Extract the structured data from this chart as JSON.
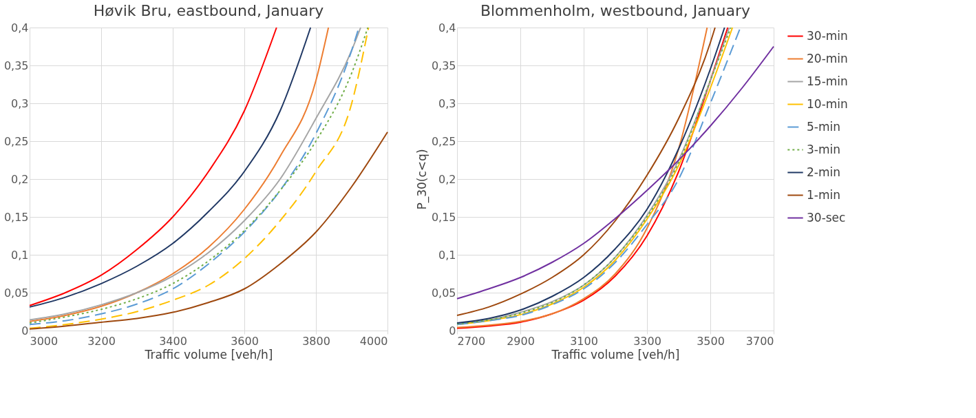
{
  "chart_data": [
    {
      "type": "line",
      "title": "Høvik Bru, eastbound, January",
      "xlabel": "Traffic volume [veh/h]",
      "xlim": [
        3000,
        4000
      ],
      "xticks": [
        3000,
        3200,
        3400,
        3600,
        3800,
        4000
      ],
      "ylim": [
        0,
        0.4
      ],
      "yticks": [
        0,
        {
          "value": 0.05,
          "label": "0,05"
        },
        {
          "value": 0.1,
          "label": "0,1"
        },
        {
          "value": 0.15,
          "label": "0,15"
        },
        {
          "value": 0.2,
          "label": "0,2"
        },
        {
          "value": 0.25,
          "label": "0,25"
        },
        {
          "value": 0.3,
          "label": "0,3"
        },
        {
          "value": 0.35,
          "label": "0,35"
        },
        {
          "value": 0.4,
          "label": "0,4"
        }
      ],
      "grid": true,
      "legend": false,
      "series": [
        {
          "color": "#ff0000",
          "line_style": "solid",
          "x": [
            3000,
            3100,
            3200,
            3300,
            3400,
            3500,
            3600,
            3690
          ],
          "values": [
            0.033,
            0.05,
            0.073,
            0.107,
            0.15,
            0.21,
            0.29,
            0.4
          ]
        },
        {
          "color": "#ed7d31",
          "line_style": "solid",
          "x": [
            3000,
            3100,
            3200,
            3300,
            3400,
            3500,
            3600,
            3700,
            3800,
            3835
          ],
          "values": [
            0.012,
            0.02,
            0.032,
            0.05,
            0.075,
            0.11,
            0.16,
            0.23,
            0.33,
            0.4
          ]
        },
        {
          "color": "#a5a5a5",
          "line_style": "solid",
          "x": [
            3000,
            3100,
            3200,
            3300,
            3400,
            3500,
            3600,
            3700,
            3800,
            3900,
            3925
          ],
          "values": [
            0.014,
            0.022,
            0.034,
            0.05,
            0.072,
            0.103,
            0.145,
            0.2,
            0.28,
            0.37,
            0.4
          ]
        },
        {
          "color": "#ffc000",
          "line_style": "dashed",
          "x": [
            3000,
            3100,
            3200,
            3300,
            3400,
            3500,
            3600,
            3700,
            3800,
            3900,
            3947
          ],
          "values": [
            0.003,
            0.008,
            0.015,
            0.025,
            0.04,
            0.06,
            0.095,
            0.145,
            0.21,
            0.3,
            0.4
          ]
        },
        {
          "color": "#5b9bd5",
          "line_style": "dashed",
          "x": [
            3000,
            3100,
            3200,
            3300,
            3400,
            3500,
            3600,
            3700,
            3800,
            3900,
            3920
          ],
          "values": [
            0.008,
            0.013,
            0.022,
            0.035,
            0.055,
            0.088,
            0.13,
            0.185,
            0.26,
            0.37,
            0.4
          ]
        },
        {
          "color": "#70ad47",
          "line_style": "dotted",
          "x": [
            3000,
            3100,
            3200,
            3300,
            3400,
            3500,
            3600,
            3700,
            3800,
            3900,
            3945
          ],
          "values": [
            0.01,
            0.018,
            0.028,
            0.042,
            0.062,
            0.092,
            0.132,
            0.185,
            0.25,
            0.34,
            0.4
          ]
        },
        {
          "color": "#203864",
          "line_style": "solid",
          "x": [
            3000,
            3100,
            3200,
            3300,
            3400,
            3500,
            3600,
            3700,
            3785
          ],
          "values": [
            0.031,
            0.044,
            0.062,
            0.085,
            0.115,
            0.157,
            0.21,
            0.29,
            0.4
          ]
        },
        {
          "color": "#9e480e",
          "line_style": "solid",
          "x": [
            3000,
            3100,
            3200,
            3300,
            3400,
            3500,
            3600,
            3700,
            3800,
            3900,
            4000
          ],
          "values": [
            0.002,
            0.006,
            0.011,
            0.016,
            0.024,
            0.037,
            0.055,
            0.088,
            0.13,
            0.19,
            0.262
          ]
        }
      ]
    },
    {
      "type": "line",
      "title": "Blommenholm, westbound, January",
      "xlabel": "Traffic volume [veh/h]",
      "ylabel": "P_30(c<q)",
      "xlim": [
        2700,
        3700
      ],
      "xticks": [
        2700,
        2900,
        3100,
        3300,
        3500,
        3700
      ],
      "ylim": [
        0,
        0.4
      ],
      "yticks": [
        0,
        {
          "value": 0.05,
          "label": "0,05"
        },
        {
          "value": 0.1,
          "label": "0,1"
        },
        {
          "value": 0.15,
          "label": "0,15"
        },
        {
          "value": 0.2,
          "label": "0,2"
        },
        {
          "value": 0.25,
          "label": "0,25"
        },
        {
          "value": 0.3,
          "label": "0,3"
        },
        {
          "value": 0.35,
          "label": "0,35"
        },
        {
          "value": 0.4,
          "label": "0,4"
        }
      ],
      "grid": true,
      "legend": "right",
      "series": [
        {
          "name": "30-min",
          "color": "#ff0000",
          "line_style": "solid",
          "x": [
            2700,
            2800,
            2900,
            3000,
            3100,
            3200,
            3300,
            3400,
            3500,
            3555
          ],
          "values": [
            0.003,
            0.006,
            0.011,
            0.022,
            0.04,
            0.072,
            0.125,
            0.21,
            0.33,
            0.4
          ]
        },
        {
          "name": "20-min",
          "color": "#ed7d31",
          "line_style": "solid",
          "x": [
            2700,
            2800,
            2900,
            3000,
            3100,
            3200,
            3300,
            3400,
            3490
          ],
          "values": [
            0.004,
            0.007,
            0.012,
            0.022,
            0.042,
            0.075,
            0.135,
            0.24,
            0.4
          ]
        },
        {
          "name": "15-min",
          "color": "#a5a5a5",
          "line_style": "solid",
          "x": [
            2700,
            2800,
            2900,
            3000,
            3100,
            3200,
            3300,
            3400,
            3500,
            3560
          ],
          "values": [
            0.009,
            0.014,
            0.024,
            0.038,
            0.06,
            0.097,
            0.152,
            0.225,
            0.33,
            0.4
          ]
        },
        {
          "name": "10-min",
          "color": "#ffc000",
          "line_style": "solid",
          "x": [
            2700,
            2800,
            2900,
            3000,
            3100,
            3200,
            3300,
            3400,
            3500,
            3570
          ],
          "values": [
            0.008,
            0.013,
            0.021,
            0.035,
            0.057,
            0.093,
            0.147,
            0.218,
            0.32,
            0.4
          ]
        },
        {
          "name": "5-min",
          "color": "#5b9bd5",
          "line_style": "dashed",
          "x": [
            2700,
            2800,
            2900,
            3000,
            3100,
            3200,
            3300,
            3400,
            3500,
            3595
          ],
          "values": [
            0.008,
            0.013,
            0.02,
            0.034,
            0.055,
            0.09,
            0.14,
            0.2,
            0.3,
            0.4
          ]
        },
        {
          "name": "3-min",
          "color": "#70ad47",
          "line_style": "dotted",
          "x": [
            2700,
            2800,
            2900,
            3000,
            3100,
            3200,
            3300,
            3400,
            3500,
            3565
          ],
          "values": [
            0.009,
            0.014,
            0.023,
            0.037,
            0.06,
            0.097,
            0.15,
            0.222,
            0.33,
            0.4
          ]
        },
        {
          "name": "2-min",
          "color": "#203864",
          "line_style": "solid",
          "x": [
            2700,
            2800,
            2900,
            3000,
            3100,
            3200,
            3300,
            3400,
            3500,
            3545
          ],
          "values": [
            0.01,
            0.016,
            0.027,
            0.045,
            0.07,
            0.108,
            0.16,
            0.24,
            0.345,
            0.4
          ]
        },
        {
          "name": "1-min",
          "color": "#9e480e",
          "line_style": "solid",
          "x": [
            2700,
            2800,
            2900,
            3000,
            3100,
            3200,
            3300,
            3400,
            3500,
            3515
          ],
          "values": [
            0.02,
            0.031,
            0.048,
            0.07,
            0.1,
            0.145,
            0.205,
            0.28,
            0.38,
            0.4
          ]
        },
        {
          "name": "30-sec",
          "color": "#7030a0",
          "line_style": "solid",
          "x": [
            2700,
            2800,
            2900,
            3000,
            3100,
            3200,
            3300,
            3400,
            3500,
            3600,
            3700
          ],
          "values": [
            0.042,
            0.055,
            0.07,
            0.09,
            0.115,
            0.148,
            0.185,
            0.225,
            0.27,
            0.32,
            0.375
          ]
        }
      ]
    }
  ]
}
